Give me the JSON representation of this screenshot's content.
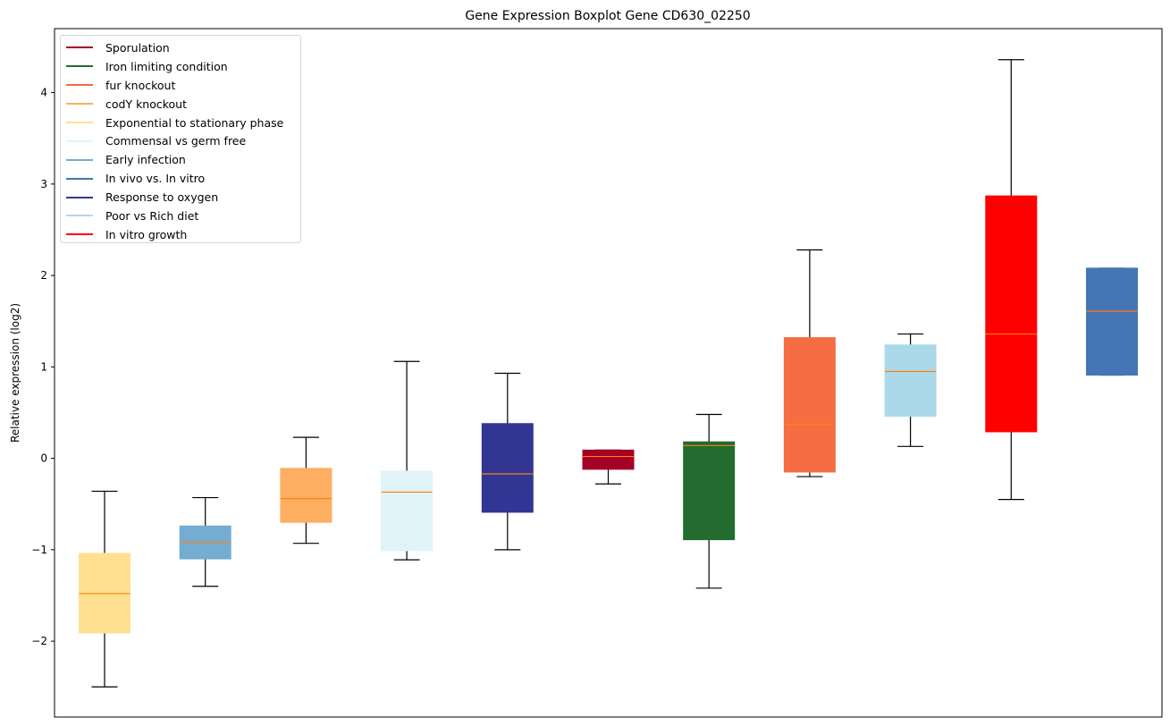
{
  "chart_data": {
    "type": "boxplot",
    "title": "Gene Expression Boxplot Gene CD630_02250",
    "xlabel": "",
    "ylabel": "Relative expression (log2)",
    "ylim": [
      -2.83,
      4.7
    ],
    "yticks": [
      -2,
      -1,
      0,
      1,
      2,
      3,
      4
    ],
    "ytick_labels": [
      "−2",
      "−1",
      "0",
      "1",
      "2",
      "3",
      "4"
    ],
    "grid": false,
    "legend_position": "top-left",
    "median_color": "#ff7f0e",
    "whisker_color": "#000000",
    "legend": [
      {
        "label": "Sporulation",
        "color": "#a50026"
      },
      {
        "label": "Iron limiting condition",
        "color": "#236b2e"
      },
      {
        "label": "fur knockout",
        "color": "#f46d43"
      },
      {
        "label": "codY knockout",
        "color": "#fdae61"
      },
      {
        "label": "Exponential to stationary phase",
        "color": "#fee090"
      },
      {
        "label": "Commensal vs germ free",
        "color": "#e0f3f8"
      },
      {
        "label": "Early infection",
        "color": "#74add1"
      },
      {
        "label": "In vivo vs. In vitro",
        "color": "#4575b4"
      },
      {
        "label": "Response to oxygen",
        "color": "#313695"
      },
      {
        "label": "Poor vs Rich diet",
        "color": "#abd9e9"
      },
      {
        "label": "In vitro growth",
        "color": "#ff0000"
      }
    ],
    "boxes": [
      {
        "group": "Exponential to stationary phase",
        "color": "#fee090",
        "whisker_low": -2.5,
        "q1": -1.91,
        "median": -1.48,
        "q3": -1.04,
        "whisker_high": -0.36
      },
      {
        "group": "Early infection",
        "color": "#74add1",
        "whisker_low": -1.4,
        "q1": -1.1,
        "median": -0.92,
        "q3": -0.74,
        "whisker_high": -0.43
      },
      {
        "group": "codY knockout",
        "color": "#fdae61",
        "whisker_low": -0.93,
        "q1": -0.7,
        "median": -0.44,
        "q3": -0.11,
        "whisker_high": 0.23
      },
      {
        "group": "Commensal vs germ free",
        "color": "#e0f3f8",
        "whisker_low": -1.11,
        "q1": -1.01,
        "median": -0.37,
        "q3": -0.14,
        "whisker_high": 1.06
      },
      {
        "group": "Response to oxygen",
        "color": "#313695",
        "whisker_low": -1.0,
        "q1": -0.59,
        "median": -0.17,
        "q3": 0.38,
        "whisker_high": 0.93
      },
      {
        "group": "Sporulation",
        "color": "#a50026",
        "whisker_low": -0.28,
        "q1": -0.12,
        "median": 0.02,
        "q3": 0.09,
        "whisker_high": 0.09
      },
      {
        "group": "Iron limiting condition",
        "color": "#236b2e",
        "whisker_low": -1.42,
        "q1": -0.89,
        "median": 0.14,
        "q3": 0.18,
        "whisker_high": 0.48
      },
      {
        "group": "fur knockout",
        "color": "#f46d43",
        "whisker_low": -0.2,
        "q1": -0.15,
        "median": 0.37,
        "q3": 1.32,
        "whisker_high": 2.28
      },
      {
        "group": "Poor vs Rich diet",
        "color": "#abd9e9",
        "whisker_low": 0.13,
        "q1": 0.46,
        "median": 0.95,
        "q3": 1.24,
        "whisker_high": 1.36
      },
      {
        "group": "In vitro growth",
        "color": "#ff0000",
        "whisker_low": -0.45,
        "q1": 0.29,
        "median": 1.36,
        "q3": 2.87,
        "whisker_high": 4.36
      },
      {
        "group": "In vivo vs. In vitro",
        "color": "#4575b4",
        "whisker_low": 0.91,
        "q1": 0.91,
        "median": 1.61,
        "q3": 2.08,
        "whisker_high": 2.08
      }
    ]
  }
}
